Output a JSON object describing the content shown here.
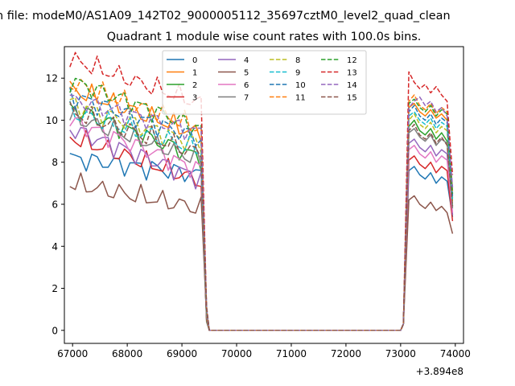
{
  "figure_title": "n file: modeM0/AS1A09_142T02_9000005112_35697cztM0_level2_quad_clean",
  "chart_data": {
    "type": "line",
    "title": "Quadrant 1 module wise count rates with 100.0s bins.",
    "xlabel": "",
    "ylabel": "",
    "x_offset_label": "+3.894e8",
    "xlim": [
      66850,
      74150
    ],
    "ylim": [
      -0.62,
      13.5
    ],
    "x_ticks": [
      67000,
      68000,
      69000,
      70000,
      71000,
      72000,
      73000,
      74000
    ],
    "x_tick_labels": [
      "67000",
      "68000",
      "69000",
      "70000",
      "71000",
      "72000",
      "73000",
      "74000"
    ],
    "y_ticks": [
      0,
      2,
      4,
      6,
      8,
      10,
      12
    ],
    "y_tick_labels": [
      "0",
      "2",
      "4",
      "6",
      "8",
      "10",
      "12"
    ],
    "grid": false,
    "legend_position": "top-center",
    "legend_columns": 4,
    "x_segment1": [
      66950,
      67050,
      67150,
      67250,
      67350,
      67450,
      67550,
      67650,
      67750,
      67850,
      67950,
      68050,
      68150,
      68250,
      68350,
      68450,
      68550,
      68650,
      68750,
      68850,
      68950,
      69050,
      69150,
      69250,
      69350
    ],
    "x_segment2": [
      73150,
      73250,
      73350,
      73450,
      73550,
      73650,
      73750,
      73850,
      73950
    ],
    "drop_x": [
      69450,
      69500
    ],
    "rise_x": [
      73000,
      73050
    ],
    "series": [
      {
        "name": "0",
        "color": "#1f77b4",
        "dash": "solid",
        "base": 8.2,
        "end": 7.4,
        "seg2": [
          7.6,
          7.8,
          7.4,
          7.2,
          7.5,
          7.0,
          7.3,
          7.1,
          5.4
        ]
      },
      {
        "name": "1",
        "color": "#ff7f0e",
        "dash": "solid",
        "base": 11.5,
        "end": 9.3,
        "seg2": [
          10.6,
          10.8,
          10.4,
          10.2,
          10.5,
          10.1,
          10.3,
          10.0,
          6.3
        ]
      },
      {
        "name": "2",
        "color": "#2ca02c",
        "dash": "solid",
        "base": 10.6,
        "end": 8.2,
        "seg2": [
          9.7,
          10.0,
          9.5,
          9.3,
          9.6,
          9.1,
          9.4,
          9.0,
          5.9
        ]
      },
      {
        "name": "3",
        "color": "#d62728",
        "dash": "solid",
        "base": 9.2,
        "end": 7.1,
        "seg2": [
          8.1,
          8.3,
          7.9,
          7.7,
          8.0,
          7.5,
          7.8,
          7.6,
          5.2
        ]
      },
      {
        "name": "4",
        "color": "#9467bd",
        "dash": "solid",
        "base": 9.6,
        "end": 7.2,
        "seg2": [
          8.9,
          9.1,
          8.7,
          8.5,
          8.8,
          8.3,
          8.6,
          8.4,
          5.5
        ]
      },
      {
        "name": "5",
        "color": "#8c564b",
        "dash": "solid",
        "base": 7.0,
        "end": 5.8,
        "seg2": [
          6.2,
          6.4,
          6.0,
          5.8,
          6.1,
          5.7,
          5.9,
          5.6,
          4.6
        ]
      },
      {
        "name": "6",
        "color": "#e377c2",
        "dash": "solid",
        "base": 10.0,
        "end": 7.6,
        "seg2": [
          8.6,
          8.8,
          8.4,
          8.2,
          8.5,
          8.0,
          8.3,
          8.1,
          5.6
        ]
      },
      {
        "name": "7",
        "color": "#7f7f7f",
        "dash": "solid",
        "base": 10.2,
        "end": 8.1,
        "seg2": [
          9.4,
          9.6,
          9.2,
          9.0,
          9.3,
          8.8,
          9.1,
          8.9,
          5.8
        ]
      },
      {
        "name": "8",
        "color": "#bcbd22",
        "dash": "dashed",
        "base": 10.8,
        "end": 8.8,
        "seg2": [
          10.0,
          10.3,
          9.8,
          9.6,
          9.9,
          9.4,
          9.7,
          9.5,
          6.1
        ]
      },
      {
        "name": "9",
        "color": "#17becf",
        "dash": "dashed",
        "base": 10.4,
        "end": 8.6,
        "seg2": [
          10.2,
          10.4,
          10.0,
          9.8,
          10.1,
          9.6,
          9.9,
          9.7,
          6.2
        ]
      },
      {
        "name": "10",
        "color": "#1f77b4",
        "dash": "dashed",
        "base": 11.2,
        "end": 9.1,
        "seg2": [
          10.4,
          10.7,
          10.2,
          10.0,
          10.3,
          9.8,
          10.1,
          9.9,
          6.4
        ]
      },
      {
        "name": "11",
        "color": "#ff7f0e",
        "dash": "dashed",
        "base": 11.8,
        "end": 9.6,
        "seg2": [
          10.9,
          11.2,
          10.7,
          10.5,
          10.8,
          10.3,
          10.6,
          10.4,
          6.6
        ]
      },
      {
        "name": "12",
        "color": "#2ca02c",
        "dash": "dashed",
        "base": 11.9,
        "end": 9.6,
        "seg2": [
          10.8,
          11.0,
          10.6,
          10.4,
          10.7,
          10.2,
          10.5,
          10.3,
          6.5
        ]
      },
      {
        "name": "13",
        "color": "#d62728",
        "dash": "dashed",
        "base": 12.9,
        "end": 10.8,
        "seg2": [
          12.3,
          11.8,
          11.5,
          11.7,
          11.3,
          11.6,
          11.2,
          10.9,
          7.4
        ]
      },
      {
        "name": "14",
        "color": "#9467bd",
        "dash": "dashed",
        "base": 11.0,
        "end": 9.4,
        "seg2": [
          10.6,
          10.9,
          11.1,
          10.7,
          10.9,
          10.4,
          10.6,
          10.2,
          6.8
        ]
      },
      {
        "name": "15",
        "color": "#8c564b",
        "dash": "dashed",
        "base": 10.4,
        "end": 8.4,
        "seg2": [
          9.5,
          9.8,
          9.3,
          9.1,
          9.4,
          8.9,
          9.2,
          8.8,
          5.9
        ]
      }
    ]
  }
}
